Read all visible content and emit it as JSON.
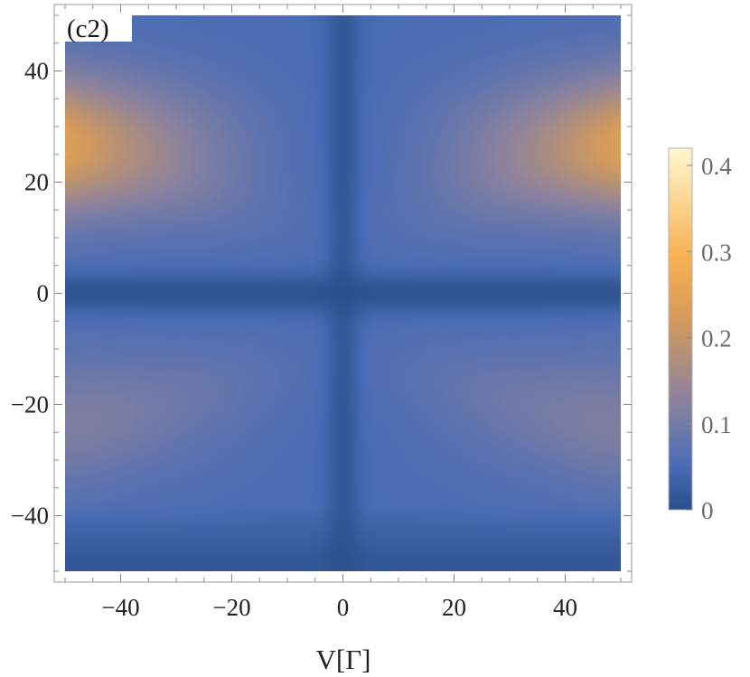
{
  "panel_label": "(c2)",
  "chart_data": {
    "type": "heatmap",
    "xlabel": "V[Γ]",
    "ylabel": "",
    "xlim": [
      -50,
      50
    ],
    "ylim": [
      -50,
      50
    ],
    "x_ticks": [
      "−40",
      "−20",
      "0",
      "20",
      "40"
    ],
    "y_ticks": [
      "40",
      "20",
      "0",
      "−20",
      "−40"
    ],
    "x_tick_values": [
      -40,
      -20,
      0,
      20,
      40
    ],
    "y_tick_values": [
      40,
      20,
      0,
      -20,
      -40
    ],
    "colorbar": {
      "range": [
        0,
        0.42
      ],
      "ticks": [
        "0",
        "0.1",
        "0.2",
        "0.3",
        "0.4"
      ],
      "tick_values": [
        0,
        0.1,
        0.2,
        0.3,
        0.4
      ],
      "colors": [
        "#2a4f8a",
        "#4a6cb5",
        "#8a82a0",
        "#d39a5c",
        "#f7b152",
        "#fff8d0"
      ]
    },
    "features": [
      {
        "x": -50,
        "y": 25,
        "value": 0.2
      },
      {
        "x": 50,
        "y": 25,
        "value": 0.2
      },
      {
        "x": -40,
        "y": -20,
        "value": 0.06
      },
      {
        "x": 40,
        "y": -20,
        "value": 0.06
      },
      {
        "x": 0,
        "y": 0,
        "value": 0.0
      }
    ],
    "grid": false
  }
}
